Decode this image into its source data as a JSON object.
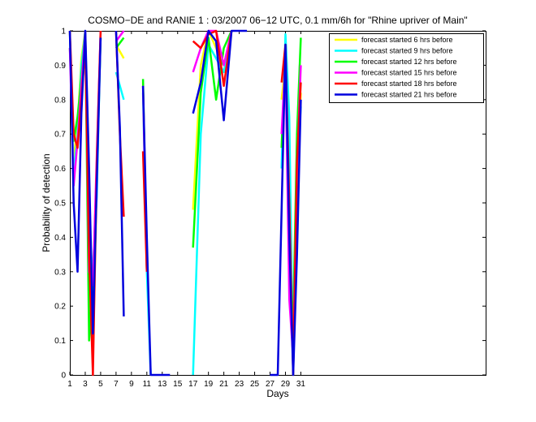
{
  "chart_data": {
    "type": "line",
    "title": "COSMO−DE and RANIE 1 : 03/2007 06−12 UTC, 0.1 mm/6h for \"Rhine upriver of Main\"",
    "xlabel": "Days",
    "ylabel": "Probability of detection",
    "xlim": [
      1,
      55
    ],
    "ylim": [
      0,
      1
    ],
    "x_ticks": [
      1,
      3,
      5,
      7,
      9,
      11,
      13,
      15,
      17,
      19,
      21,
      23,
      25,
      27,
      29,
      31
    ],
    "x_tick_labels": [
      "1",
      "3",
      "5",
      "7",
      "9",
      "11",
      "13",
      "15",
      "17",
      "19",
      "21",
      "23",
      "25",
      "27",
      "29",
      "31"
    ],
    "y_ticks": [
      0,
      0.1,
      0.2,
      0.3,
      0.4,
      0.5,
      0.6,
      0.7,
      0.8,
      0.9,
      1
    ],
    "y_tick_labels": [
      "0",
      "0.1",
      "0.2",
      "0.3",
      "0.4",
      "0.5",
      "0.6",
      "0.7",
      "0.8",
      "0.9",
      "1"
    ],
    "grid": false,
    "legend_position": "top-right",
    "series": [
      {
        "name": "forecast started 6 hrs before",
        "color": "#ffff00",
        "points": [
          [
            1,
            1.0
          ],
          [
            1.5,
            0.62
          ],
          [
            2,
            0.72
          ],
          [
            2.5,
            0.92
          ],
          [
            3,
            1.0
          ],
          [
            3.5,
            0.5
          ],
          [
            4,
            0.05
          ],
          [
            4.5,
            0.55
          ],
          [
            5,
            1.0
          ],
          null,
          [
            7,
            0.96
          ],
          [
            8,
            0.92
          ],
          null,
          [
            10.5,
            0.85
          ],
          [
            11,
            0.3
          ],
          null,
          [
            17,
            0.48
          ],
          [
            18,
            0.9
          ],
          [
            19,
            1.0
          ],
          [
            20,
            0.95
          ],
          [
            21,
            0.9
          ],
          [
            22,
            1.0
          ],
          null,
          [
            28.5,
            0.8
          ],
          [
            29,
            0.9
          ],
          [
            29.5,
            0.5
          ],
          [
            30,
            0.05
          ],
          [
            30.5,
            0.55
          ],
          [
            31,
            0.82
          ]
        ]
      },
      {
        "name": "forecast started 9 hrs before",
        "color": "#00ffff",
        "points": [
          [
            1,
            1.0
          ],
          [
            1.5,
            0.58
          ],
          [
            2,
            0.7
          ],
          [
            2.5,
            0.9
          ],
          [
            3,
            1.0
          ],
          [
            3.5,
            0.25
          ],
          [
            4,
            0.32
          ],
          [
            4.5,
            0.52
          ],
          [
            5,
            1.0
          ],
          null,
          [
            7,
            0.88
          ],
          [
            8,
            0.8
          ],
          null,
          [
            10.5,
            0.82
          ],
          [
            11,
            0.3
          ],
          [
            11.5,
            0.0
          ],
          null,
          [
            17,
            0.0
          ],
          [
            18,
            0.7
          ],
          [
            19,
            0.96
          ],
          [
            20,
            0.92
          ],
          [
            21,
            0.88
          ],
          [
            22,
            1.0
          ],
          null,
          [
            28.5,
            0.6
          ],
          [
            29,
            0.99
          ],
          [
            29.5,
            0.75
          ],
          [
            30,
            0.0
          ],
          [
            30.5,
            0.6
          ],
          [
            31,
            0.78
          ]
        ]
      },
      {
        "name": "forecast started 12 hrs before",
        "color": "#00ff00",
        "points": [
          [
            1,
            0.95
          ],
          [
            1.5,
            0.68
          ],
          [
            2,
            0.75
          ],
          [
            2.5,
            0.86
          ],
          [
            3,
            1.0
          ],
          [
            3.5,
            0.1
          ],
          [
            4,
            0.28
          ],
          [
            4.5,
            0.6
          ],
          [
            5,
            0.98
          ],
          null,
          [
            7,
            0.95
          ],
          [
            8,
            0.98
          ],
          null,
          [
            10.5,
            0.86
          ],
          [
            11,
            0.3
          ],
          null,
          [
            17,
            0.37
          ],
          [
            18,
            0.82
          ],
          [
            19,
            0.98
          ],
          [
            20,
            0.8
          ],
          [
            21,
            0.95
          ],
          [
            22,
            1.0
          ],
          null,
          [
            28.5,
            0.66
          ],
          [
            29,
            0.94
          ],
          [
            29.5,
            0.3
          ],
          [
            30,
            0.15
          ],
          [
            30.5,
            0.7
          ],
          [
            31,
            0.98
          ]
        ]
      },
      {
        "name": "forecast started 15 hrs before",
        "color": "#ff00ff",
        "points": [
          [
            1,
            0.95
          ],
          [
            1.5,
            0.55
          ],
          [
            2,
            0.68
          ],
          [
            2.5,
            0.84
          ],
          [
            3,
            1.0
          ],
          [
            3.5,
            0.3
          ],
          [
            4,
            0.26
          ],
          [
            4.5,
            0.64
          ],
          [
            5,
            1.0
          ],
          null,
          [
            7,
            0.97
          ],
          [
            8,
            1.0
          ],
          null,
          [
            10.5,
            0.84
          ],
          [
            11,
            0.3
          ],
          null,
          [
            17,
            0.88
          ],
          [
            18,
            0.95
          ],
          [
            19,
            1.0
          ],
          [
            20,
            1.0
          ],
          [
            21,
            0.9
          ],
          [
            22,
            1.0
          ],
          null,
          [
            28.5,
            0.7
          ],
          [
            29,
            0.92
          ],
          [
            29.5,
            0.22
          ],
          [
            30,
            0.05
          ],
          [
            30.5,
            0.6
          ],
          [
            31,
            0.9
          ]
        ]
      },
      {
        "name": "forecast started 18 hrs before",
        "color": "#ff0000",
        "points": [
          [
            1,
            1.0
          ],
          [
            1.5,
            0.7
          ],
          [
            2,
            0.66
          ],
          [
            2.5,
            0.8
          ],
          [
            3,
            0.96
          ],
          [
            3.5,
            0.35
          ],
          [
            4,
            0.0
          ],
          [
            4.5,
            0.62
          ],
          [
            5,
            1.0
          ],
          null,
          [
            7,
            1.0
          ],
          [
            7.5,
            0.7
          ],
          [
            8,
            0.46
          ],
          null,
          [
            10.5,
            0.65
          ],
          [
            11,
            0.3
          ],
          null,
          [
            17,
            0.97
          ],
          [
            18,
            0.95
          ],
          [
            19,
            0.99
          ],
          [
            20,
            1.0
          ],
          [
            21,
            0.84
          ],
          [
            22,
            1.0
          ],
          null,
          [
            28.5,
            0.85
          ],
          [
            29,
            0.96
          ],
          [
            29.5,
            0.5
          ],
          [
            30,
            0.0
          ],
          [
            30.5,
            0.62
          ],
          [
            31,
            0.85
          ]
        ]
      },
      {
        "name": "forecast started 21 hrs before",
        "color": "#0000dd",
        "points": [
          [
            1,
            1.0
          ],
          [
            1.5,
            0.5
          ],
          [
            2,
            0.3
          ],
          [
            2.5,
            0.76
          ],
          [
            3,
            1.0
          ],
          [
            3.5,
            0.6
          ],
          [
            4,
            0.12
          ],
          [
            4.5,
            0.56
          ],
          [
            5,
            0.98
          ],
          null,
          [
            7,
            1.0
          ],
          [
            7.5,
            0.72
          ],
          [
            8,
            0.17
          ],
          null,
          [
            10.5,
            0.84
          ],
          [
            11,
            0.4
          ],
          [
            11.5,
            0.0
          ],
          [
            13,
            0.0
          ],
          [
            14,
            0.0
          ],
          null,
          [
            17,
            0.76
          ],
          [
            18,
            0.85
          ],
          [
            19,
            1.0
          ],
          [
            20,
            0.97
          ],
          [
            21,
            0.74
          ],
          [
            22,
            1.0
          ],
          [
            23,
            1.0
          ],
          [
            24,
            1.0
          ],
          null,
          [
            27,
            0.0
          ],
          [
            28,
            0.0
          ],
          [
            29,
            0.96
          ],
          [
            29.5,
            0.4
          ],
          [
            30,
            0.0
          ],
          [
            30.5,
            0.35
          ],
          [
            31,
            0.8
          ]
        ]
      }
    ]
  }
}
